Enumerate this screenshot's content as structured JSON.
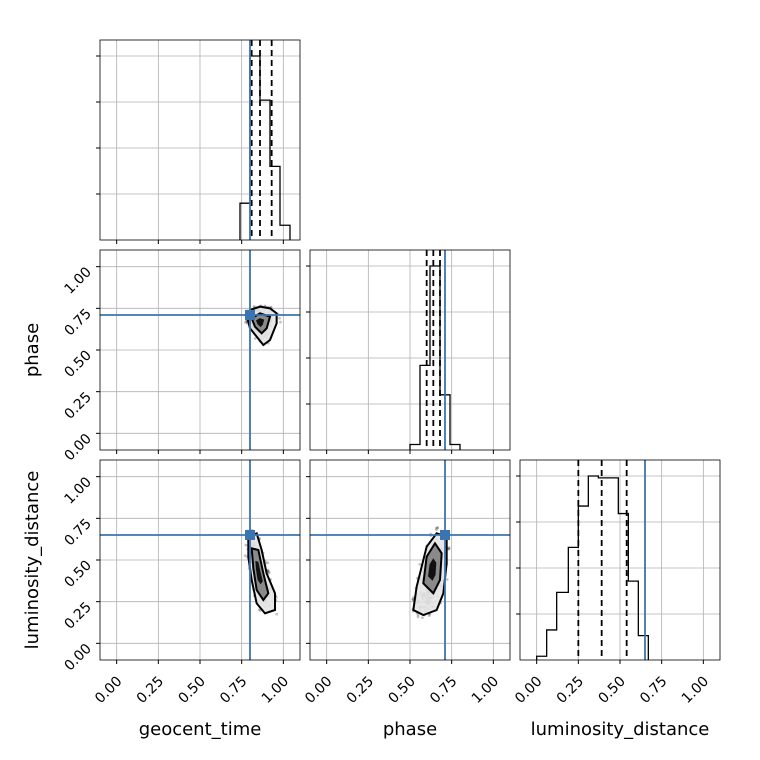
{
  "chart_data": {
    "type": "corner",
    "parameters": [
      "geocent_time",
      "phase",
      "luminosity_distance"
    ],
    "xlabels": [
      "geocent_time",
      "phase",
      "luminosity_distance"
    ],
    "ylabels": [
      "",
      "phase",
      "luminosity_distance"
    ],
    "axis_range": [
      -0.1,
      1.1
    ],
    "tick_values": [
      0.0,
      0.25,
      0.5,
      0.75,
      1.0
    ],
    "tick_labels": [
      "0.00",
      "0.25",
      "0.50",
      "0.75",
      "1.00"
    ],
    "grid": true,
    "truths": {
      "geocent_time": 0.8,
      "phase": 0.71,
      "luminosity_distance": 0.65
    },
    "colors": {
      "truth": "#3b75af",
      "histogram": "#000000",
      "samples": "#555555"
    },
    "histograms": {
      "geocent_time": {
        "bin_edges": [
          0.74,
          0.8,
          0.86,
          0.92,
          0.98,
          1.04
        ],
        "counts": [
          0.2,
          1.0,
          0.76,
          0.4,
          0.08
        ],
        "quantiles": [
          0.81,
          0.86,
          0.93
        ]
      },
      "phase": {
        "bin_edges": [
          0.5,
          0.56,
          0.62,
          0.68,
          0.74,
          0.8
        ],
        "counts": [
          0.03,
          0.46,
          1.0,
          0.3,
          0.03
        ],
        "quantiles": [
          0.6,
          0.64,
          0.68
        ]
      },
      "luminosity_distance": {
        "bin_edges": [
          0.0,
          0.06,
          0.12,
          0.19,
          0.25,
          0.31,
          0.37,
          0.43,
          0.49,
          0.55,
          0.61,
          0.67
        ],
        "counts": [
          0.02,
          0.16,
          0.36,
          0.6,
          0.82,
          0.98,
          0.97,
          0.97,
          0.78,
          0.42,
          0.13
        ],
        "quantiles": [
          0.25,
          0.39,
          0.54
        ]
      }
    },
    "joint_panels": [
      {
        "x": "geocent_time",
        "y": "phase",
        "samples_region": {
          "x": [
            0.78,
            1.01
          ],
          "y": [
            0.5,
            0.79
          ]
        },
        "contour_outer": [
          [
            0.78,
            0.71
          ],
          [
            0.8,
            0.74
          ],
          [
            0.86,
            0.76
          ],
          [
            0.92,
            0.75
          ],
          [
            0.96,
            0.72
          ],
          [
            0.96,
            0.66
          ],
          [
            0.92,
            0.56
          ],
          [
            0.88,
            0.53
          ],
          [
            0.84,
            0.58
          ],
          [
            0.8,
            0.63
          ],
          [
            0.78,
            0.71
          ]
        ],
        "contour_inner": [
          [
            0.81,
            0.69
          ],
          [
            0.86,
            0.72
          ],
          [
            0.92,
            0.7
          ],
          [
            0.9,
            0.63
          ],
          [
            0.87,
            0.6
          ],
          [
            0.83,
            0.64
          ],
          [
            0.81,
            0.69
          ]
        ]
      },
      {
        "x": "geocent_time",
        "y": "luminosity_distance",
        "samples_region": {
          "x": [
            0.79,
            1.01
          ],
          "y": [
            0.07,
            0.66
          ]
        },
        "contour_outer": [
          [
            0.79,
            0.64
          ],
          [
            0.84,
            0.66
          ],
          [
            0.87,
            0.56
          ],
          [
            0.9,
            0.42
          ],
          [
            0.95,
            0.3
          ],
          [
            0.95,
            0.2
          ],
          [
            0.89,
            0.18
          ],
          [
            0.84,
            0.24
          ],
          [
            0.81,
            0.38
          ],
          [
            0.79,
            0.52
          ],
          [
            0.79,
            0.64
          ]
        ],
        "contour_inner": [
          [
            0.81,
            0.57
          ],
          [
            0.85,
            0.56
          ],
          [
            0.88,
            0.42
          ],
          [
            0.91,
            0.3
          ],
          [
            0.88,
            0.26
          ],
          [
            0.84,
            0.32
          ],
          [
            0.82,
            0.45
          ],
          [
            0.81,
            0.57
          ]
        ]
      },
      {
        "x": "phase",
        "y": "luminosity_distance",
        "samples_region": {
          "x": [
            0.5,
            0.8
          ],
          "y": [
            0.1,
            0.66
          ]
        },
        "contour_outer": [
          [
            0.52,
            0.2
          ],
          [
            0.54,
            0.34
          ],
          [
            0.6,
            0.58
          ],
          [
            0.66,
            0.66
          ],
          [
            0.72,
            0.64
          ],
          [
            0.72,
            0.48
          ],
          [
            0.7,
            0.3
          ],
          [
            0.66,
            0.2
          ],
          [
            0.58,
            0.17
          ],
          [
            0.52,
            0.2
          ]
        ],
        "contour_inner": [
          [
            0.58,
            0.36
          ],
          [
            0.6,
            0.52
          ],
          [
            0.65,
            0.6
          ],
          [
            0.69,
            0.54
          ],
          [
            0.68,
            0.38
          ],
          [
            0.64,
            0.3
          ],
          [
            0.58,
            0.36
          ]
        ]
      }
    ]
  }
}
